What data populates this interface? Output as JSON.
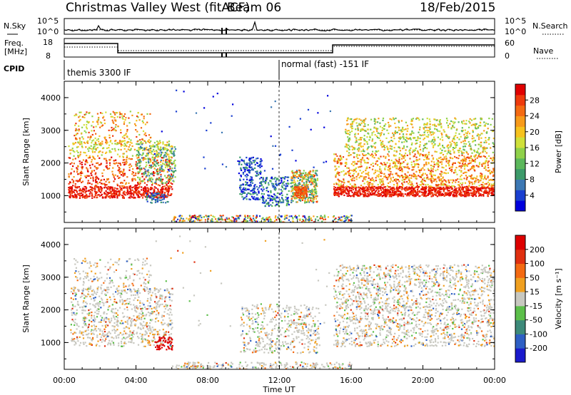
{
  "header": {
    "station": "Christmas Valley West (fitACF)",
    "beam": "Beam 06",
    "date": "18/Feb/2015"
  },
  "top_panels": {
    "nsky_label": "N.Sky",
    "nsearch_label": "N.Search",
    "freq_label_1": "Freq.",
    "freq_label_2": "[MHz]",
    "nave_label": "Nave",
    "cpid_label": "CPID",
    "noise_ticks": [
      "10^5",
      "10^0"
    ],
    "freq_ticks": [
      "18",
      "8"
    ],
    "nave_ticks": [
      "60",
      "0"
    ],
    "cpid_segments": [
      {
        "label": "themis 3300 IF",
        "start_hour": 0
      },
      {
        "label": "normal (fast) -151 IF",
        "start_hour": 12
      }
    ]
  },
  "axes": {
    "xlabel": "Time UT",
    "ylabel": "Slant Range [km]",
    "x_ticks": [
      "00:00",
      "04:00",
      "08:00",
      "12:00",
      "16:00",
      "20:00",
      "00:00"
    ],
    "y_ticks": [
      "1000",
      "2000",
      "3000",
      "4000"
    ]
  },
  "colorbars": {
    "power": {
      "label": "Power [dB]",
      "ticks": [
        "28",
        "24",
        "20",
        "16",
        "12",
        "8",
        "4"
      ],
      "colors": [
        "#0000dd",
        "#1a3fd0",
        "#3c78b4",
        "#3c9a6a",
        "#5cb85c",
        "#8fd14a",
        "#cfe03a",
        "#f6c21e",
        "#f79a1a",
        "#f46a12",
        "#ee3a0c",
        "#e00000"
      ]
    },
    "velocity": {
      "label": "Velocity [m s⁻¹]",
      "ticks": [
        "200",
        "100",
        "50",
        "15",
        "-15",
        "-50",
        "-100",
        "-200"
      ],
      "colors": [
        "#1a1acc",
        "#2e5fc4",
        "#3d8a7a",
        "#5cbf4a",
        "#c8c8c0",
        "#f0a020",
        "#f46a12",
        "#e03010",
        "#dd0000"
      ]
    }
  },
  "chart_data": [
    {
      "type": "scatter",
      "title": "Power",
      "xlabel": "Time UT",
      "ylabel": "Slant Range [km]",
      "xlim": [
        0,
        24
      ],
      "ylim": [
        180,
        4500
      ],
      "colorbar_label": "Power [dB]",
      "colorbar_range": [
        0,
        32
      ],
      "regions": [
        {
          "name": "evening-echoes",
          "x": [
            0.2,
            6.2
          ],
          "y": [
            900,
            3600
          ],
          "value_db": 25
        },
        {
          "name": "night-patch",
          "x": [
            9.7,
            14.2
          ],
          "y": [
            700,
            2300
          ],
          "value_db": 10
        },
        {
          "name": "dawn-echoes",
          "x": [
            15.0,
            24.0
          ],
          "y": [
            900,
            3400
          ],
          "value_db": 24
        },
        {
          "name": "ground-scatter-band",
          "x": [
            6.0,
            16.0
          ],
          "y": [
            180,
            420
          ],
          "value_db": 18
        }
      ]
    },
    {
      "type": "scatter",
      "title": "Velocity",
      "xlabel": "Time UT",
      "ylabel": "Slant Range [km]",
      "xlim": [
        0,
        24
      ],
      "ylim": [
        180,
        4500
      ],
      "colorbar_label": "Velocity [m s⁻¹]",
      "colorbar_range": [
        -200,
        200
      ],
      "regions": [
        {
          "name": "evening-echoes",
          "x": [
            0.2,
            6.2
          ],
          "y": [
            900,
            3600
          ],
          "value_ms": -30
        },
        {
          "name": "night-patch",
          "x": [
            9.7,
            14.2
          ],
          "y": [
            700,
            2300
          ],
          "value_ms": -40
        },
        {
          "name": "dawn-echoes",
          "x": [
            15.0,
            24.0
          ],
          "y": [
            900,
            3400
          ],
          "value_ms": 0
        },
        {
          "name": "ground-scatter-band",
          "x": [
            6.0,
            16.0
          ],
          "y": [
            180,
            420
          ],
          "value_ms": -20
        }
      ]
    }
  ]
}
